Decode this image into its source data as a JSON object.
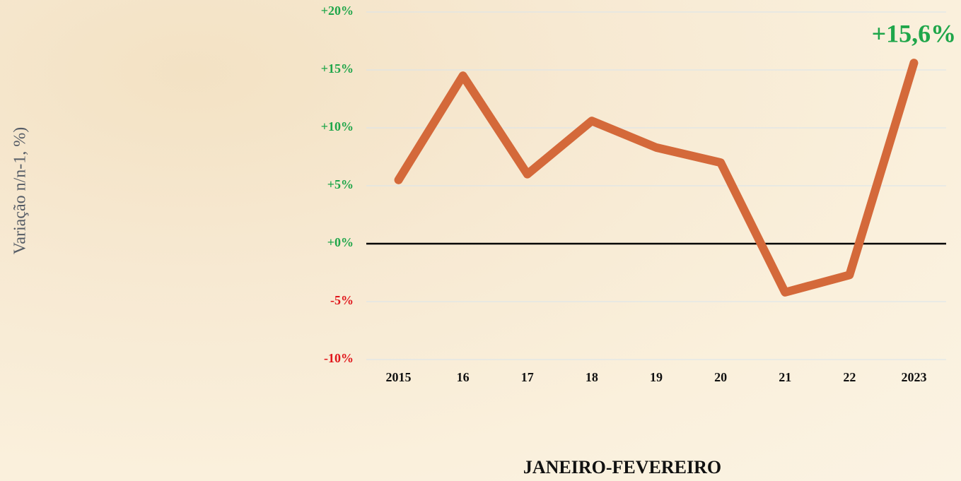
{
  "chart_data": {
    "type": "line",
    "y_label": "Variação n/n-1, %)",
    "x_label": "JANEIRO-FEVEREIRO",
    "categories": [
      "2015",
      "16",
      "17",
      "18",
      "19",
      "20",
      "21",
      "22",
      "2023"
    ],
    "values": [
      5.5,
      14.5,
      6,
      10.6,
      8.3,
      7,
      -4.2,
      -2.7,
      15.6
    ],
    "value_labels": [
      null,
      null,
      null,
      null,
      null,
      null,
      null,
      null,
      "+15,6%"
    ],
    "color": "#d4693a",
    "label_color": "#1fa64a",
    "ylim": [
      -10,
      20
    ],
    "yticks": [
      {
        "value": -10,
        "label": "-10%"
      },
      {
        "value": -5,
        "label": "-5%"
      },
      {
        "value": 0,
        "label": "+0%"
      },
      {
        "value": 5,
        "label": "+5%"
      },
      {
        "value": 10,
        "label": "+10%"
      },
      {
        "value": 15,
        "label": "+15%"
      },
      {
        "value": 20,
        "label": "+20%"
      }
    ],
    "positive_tick_color": "#1fa64a",
    "negative_tick_color": "#e0161b",
    "grid": true,
    "grid_color": "#d8e4ec",
    "zero_line_color": "#000000"
  }
}
